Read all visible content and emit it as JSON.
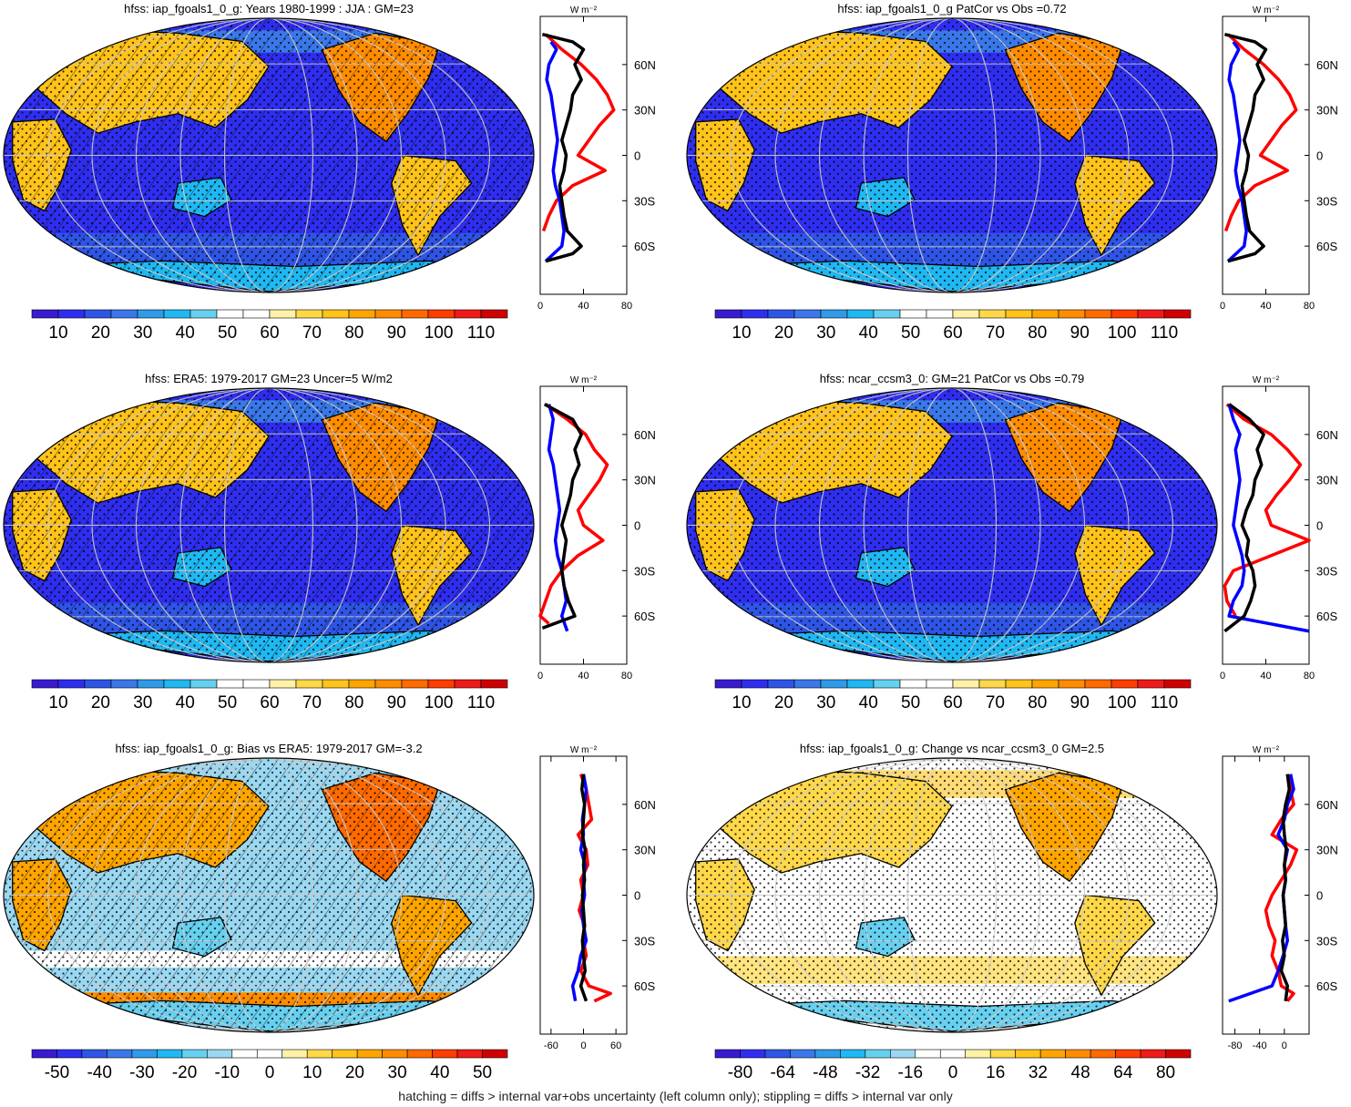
{
  "footer": "hatching = diffs > internal var+obs uncertainty (left column only); stippling = diffs > internal var only",
  "profile_units": "W m⁻²",
  "lat_ticks": [
    "60N",
    "30N",
    "0",
    "30S",
    "60S"
  ],
  "colorbars": {
    "absolute": {
      "labels": [
        "10",
        "20",
        "30",
        "40",
        "50",
        "60",
        "70",
        "80",
        "90",
        "100",
        "110"
      ],
      "colors": [
        "#3a1ad0",
        "#2f2ef0",
        "#2f55e6",
        "#3a78ea",
        "#2f9be8",
        "#1fb8f2",
        "#66d0f0",
        "#ffffff",
        "#ffffff",
        "#fff2a6",
        "#ffd84a",
        "#ffc31a",
        "#ffa500",
        "#ff8c00",
        "#ff6a00",
        "#ff3d00",
        "#f01a1a",
        "#d10000"
      ]
    },
    "bias": {
      "labels": [
        "-50",
        "-40",
        "-30",
        "-20",
        "-10",
        "0",
        "10",
        "20",
        "30",
        "40",
        "50"
      ],
      "colors": [
        "#3a1ad0",
        "#2f2ef0",
        "#2f55e6",
        "#3a78ea",
        "#2f9be8",
        "#1fb8f2",
        "#66d0f0",
        "#9ad8f2",
        "#ffffff",
        "#ffffff",
        "#fff2a6",
        "#ffd84a",
        "#ffc31a",
        "#ffa500",
        "#ff8c00",
        "#ff6a00",
        "#ff3d00",
        "#f01a1a",
        "#d10000"
      ]
    },
    "change": {
      "labels": [
        "-80",
        "-64",
        "-48",
        "-32",
        "-16",
        "0",
        "16",
        "32",
        "48",
        "64",
        "80"
      ],
      "colors": [
        "#3a1ad0",
        "#2f2ef0",
        "#2f55e6",
        "#3a78ea",
        "#2f9be8",
        "#1fb8f2",
        "#66d0f0",
        "#9ad8f2",
        "#ffffff",
        "#ffffff",
        "#fff2a6",
        "#ffd84a",
        "#ffc31a",
        "#ffa500",
        "#ff8c00",
        "#ff6a00",
        "#ff3d00",
        "#f01a1a",
        "#d10000"
      ]
    }
  },
  "chart_data": [
    {
      "type": "heatmap",
      "title": "hfss: iap_fgoals1_0_g: Years 1980-1999 : JJA : GM=23",
      "colorbar": "absolute",
      "map_style": "absolute",
      "hatching": true,
      "profile": {
        "xticks": [
          "0",
          "40",
          "80"
        ],
        "xlim": [
          0,
          80
        ],
        "series": [
          {
            "color": "#ff0000",
            "lat": [
              80,
              70,
              60,
              50,
              40,
              30,
              20,
              10,
              0,
              -10,
              -20,
              -30,
              -40,
              -50
            ],
            "values": [
              5,
              20,
              38,
              52,
              62,
              68,
              55,
              45,
              35,
              60,
              30,
              15,
              8,
              3
            ]
          },
          {
            "color": "#0000ff",
            "lat": [
              75,
              70,
              60,
              50,
              40,
              30,
              20,
              10,
              0,
              -10,
              -20,
              -30,
              -40,
              -50,
              -60,
              -70
            ],
            "values": [
              10,
              15,
              8,
              6,
              10,
              12,
              14,
              16,
              14,
              12,
              14,
              18,
              20,
              22,
              20,
              5
            ]
          },
          {
            "color": "#000000",
            "lat": [
              80,
              75,
              70,
              60,
              50,
              40,
              30,
              20,
              10,
              0,
              -10,
              -20,
              -30,
              -40,
              -50,
              -60,
              -65,
              -70
            ],
            "values": [
              2,
              30,
              40,
              32,
              38,
              30,
              28,
              24,
              20,
              24,
              22,
              18,
              20,
              22,
              25,
              38,
              30,
              5
            ]
          }
        ]
      }
    },
    {
      "type": "heatmap",
      "title": "hfss: iap_fgoals1_0_g PatCor vs Obs =0.72",
      "colorbar": "absolute",
      "map_style": "absolute",
      "hatching": false,
      "profile": {
        "xticks": [
          "0",
          "40",
          "80"
        ],
        "xlim": [
          0,
          80
        ],
        "series": [
          {
            "color": "#ff0000",
            "lat": [
              80,
              70,
              60,
              50,
              40,
              30,
              20,
              10,
              0,
              -10,
              -20,
              -30,
              -40,
              -50
            ],
            "values": [
              5,
              20,
              38,
              52,
              62,
              68,
              55,
              45,
              35,
              60,
              30,
              15,
              8,
              3
            ]
          },
          {
            "color": "#0000ff",
            "lat": [
              75,
              70,
              60,
              50,
              40,
              30,
              20,
              10,
              0,
              -10,
              -20,
              -30,
              -40,
              -50,
              -60,
              -70
            ],
            "values": [
              10,
              15,
              8,
              6,
              10,
              12,
              14,
              16,
              14,
              12,
              14,
              18,
              20,
              22,
              20,
              5
            ]
          },
          {
            "color": "#000000",
            "lat": [
              80,
              75,
              70,
              60,
              50,
              40,
              30,
              20,
              10,
              0,
              -10,
              -20,
              -30,
              -40,
              -50,
              -60,
              -65,
              -70
            ],
            "values": [
              2,
              30,
              40,
              32,
              38,
              30,
              28,
              24,
              20,
              24,
              22,
              18,
              20,
              22,
              25,
              38,
              30,
              5
            ]
          }
        ]
      }
    },
    {
      "type": "heatmap",
      "title": "hfss: ERA5: 1979-2017 GM=23 Uncer=5 W/m2",
      "colorbar": "absolute",
      "map_style": "absolute",
      "hatching": true,
      "profile": {
        "xticks": [
          "0",
          "40",
          "80"
        ],
        "xlim": [
          0,
          80
        ],
        "series": [
          {
            "color": "#ff0000",
            "lat": [
              80,
              70,
              60,
              50,
              40,
              30,
              20,
              10,
              0,
              -10,
              -20,
              -30,
              -40,
              -50,
              -60,
              -65
            ],
            "values": [
              5,
              25,
              42,
              50,
              62,
              55,
              45,
              35,
              40,
              58,
              35,
              20,
              10,
              5,
              0,
              8
            ]
          },
          {
            "color": "#0000ff",
            "lat": [
              80,
              70,
              60,
              50,
              40,
              30,
              20,
              10,
              0,
              -10,
              -20,
              -30,
              -40,
              -50,
              -60,
              -70
            ],
            "values": [
              8,
              12,
              10,
              8,
              12,
              14,
              16,
              18,
              16,
              14,
              16,
              20,
              22,
              24,
              20,
              25
            ]
          },
          {
            "color": "#000000",
            "lat": [
              80,
              70,
              60,
              50,
              40,
              30,
              20,
              10,
              0,
              -10,
              -20,
              -30,
              -40,
              -50,
              -60,
              -68
            ],
            "values": [
              4,
              30,
              38,
              32,
              36,
              30,
              28,
              24,
              20,
              24,
              22,
              20,
              22,
              26,
              32,
              2
            ]
          }
        ]
      }
    },
    {
      "type": "heatmap",
      "title": "hfss: ncar_ccsm3_0: GM=21 PatCor vs Obs =0.79",
      "colorbar": "absolute",
      "map_style": "model2",
      "hatching": false,
      "profile": {
        "xticks": [
          "0",
          "40",
          "80"
        ],
        "xlim": [
          0,
          80
        ],
        "series": [
          {
            "color": "#ff0000",
            "lat": [
              80,
              70,
              60,
              50,
              40,
              30,
              20,
              10,
              0,
              -10,
              -20,
              -30,
              -40,
              -50,
              -60
            ],
            "values": [
              4,
              20,
              45,
              60,
              72,
              62,
              50,
              40,
              45,
              80,
              45,
              10,
              2,
              4,
              12
            ]
          },
          {
            "color": "#0000ff",
            "lat": [
              80,
              70,
              60,
              50,
              40,
              30,
              20,
              10,
              0,
              -10,
              -20,
              -30,
              -40,
              -50,
              -60,
              -70
            ],
            "values": [
              6,
              10,
              16,
              12,
              14,
              16,
              14,
              12,
              10,
              14,
              18,
              20,
              18,
              10,
              6,
              80
            ]
          },
          {
            "color": "#000000",
            "lat": [
              80,
              70,
              60,
              50,
              40,
              30,
              20,
              10,
              0,
              -10,
              -20,
              -30,
              -40,
              -50,
              -60,
              -70
            ],
            "values": [
              6,
              25,
              38,
              32,
              36,
              30,
              28,
              22,
              18,
              24,
              22,
              28,
              30,
              26,
              20,
              2
            ]
          }
        ]
      }
    },
    {
      "type": "heatmap",
      "title": "hfss: iap_fgoals1_0_g: Bias vs ERA5: 1979-2017 GM=-3.2",
      "colorbar": "bias",
      "map_style": "bias",
      "hatching": true,
      "profile": {
        "xticks": [
          "-60",
          "0",
          "60"
        ],
        "xlim": [
          -80,
          80
        ],
        "series": [
          {
            "color": "#ff0000",
            "lat": [
              80,
              70,
              60,
              50,
              40,
              30,
              20,
              10,
              0,
              -10,
              -20,
              -30,
              -40,
              -50,
              -60,
              -65,
              -70
            ],
            "values": [
              -5,
              5,
              10,
              15,
              -10,
              5,
              8,
              -5,
              0,
              -8,
              2,
              0,
              5,
              -5,
              10,
              50,
              20
            ]
          },
          {
            "color": "#0000ff",
            "lat": [
              80,
              70,
              60,
              50,
              40,
              30,
              20,
              10,
              0,
              -10,
              -20,
              -30,
              -40,
              -50,
              -60,
              -70
            ],
            "values": [
              0,
              5,
              2,
              -2,
              0,
              -5,
              3,
              0,
              2,
              -3,
              0,
              5,
              -5,
              -10,
              -20,
              -15
            ]
          },
          {
            "color": "#000000",
            "lat": [
              80,
              70,
              60,
              50,
              40,
              30,
              20,
              10,
              0,
              -10,
              -20,
              -30,
              -40,
              -50,
              -60,
              -70
            ],
            "values": [
              0,
              -3,
              2,
              0,
              -2,
              3,
              0,
              2,
              -2,
              0,
              2,
              -2,
              0,
              3,
              -5,
              5
            ]
          }
        ]
      }
    },
    {
      "type": "heatmap",
      "title": "hfss: iap_fgoals1_0_g: Change vs ncar_ccsm3_0 GM=2.5",
      "colorbar": "change",
      "map_style": "change",
      "hatching": false,
      "profile": {
        "xticks": [
          "-80",
          "-40",
          "0"
        ],
        "xlim": [
          -100,
          40
        ],
        "series": [
          {
            "color": "#ff0000",
            "lat": [
              80,
              70,
              60,
              50,
              40,
              30,
              20,
              10,
              0,
              -10,
              -20,
              -30,
              -40,
              -50,
              -60,
              -65,
              -70
            ],
            "values": [
              5,
              10,
              15,
              -5,
              -20,
              20,
              10,
              -5,
              -20,
              -30,
              -25,
              -15,
              -20,
              -10,
              -5,
              15,
              5
            ]
          },
          {
            "color": "#0000ff",
            "lat": [
              80,
              70,
              60,
              50,
              40,
              30,
              20,
              10,
              0,
              -10,
              -20,
              -30,
              -40,
              -50,
              -60,
              -70
            ],
            "values": [
              10,
              15,
              5,
              0,
              -10,
              5,
              0,
              2,
              -2,
              0,
              2,
              5,
              -2,
              -10,
              -20,
              -90
            ]
          },
          {
            "color": "#000000",
            "lat": [
              80,
              70,
              60,
              50,
              40,
              30,
              20,
              10,
              0,
              -10,
              -20,
              -30,
              -40,
              -50,
              -60,
              -70
            ],
            "values": [
              5,
              8,
              2,
              -2,
              0,
              3,
              0,
              2,
              -2,
              0,
              2,
              -3,
              0,
              -5,
              5,
              2
            ]
          }
        ]
      }
    }
  ]
}
